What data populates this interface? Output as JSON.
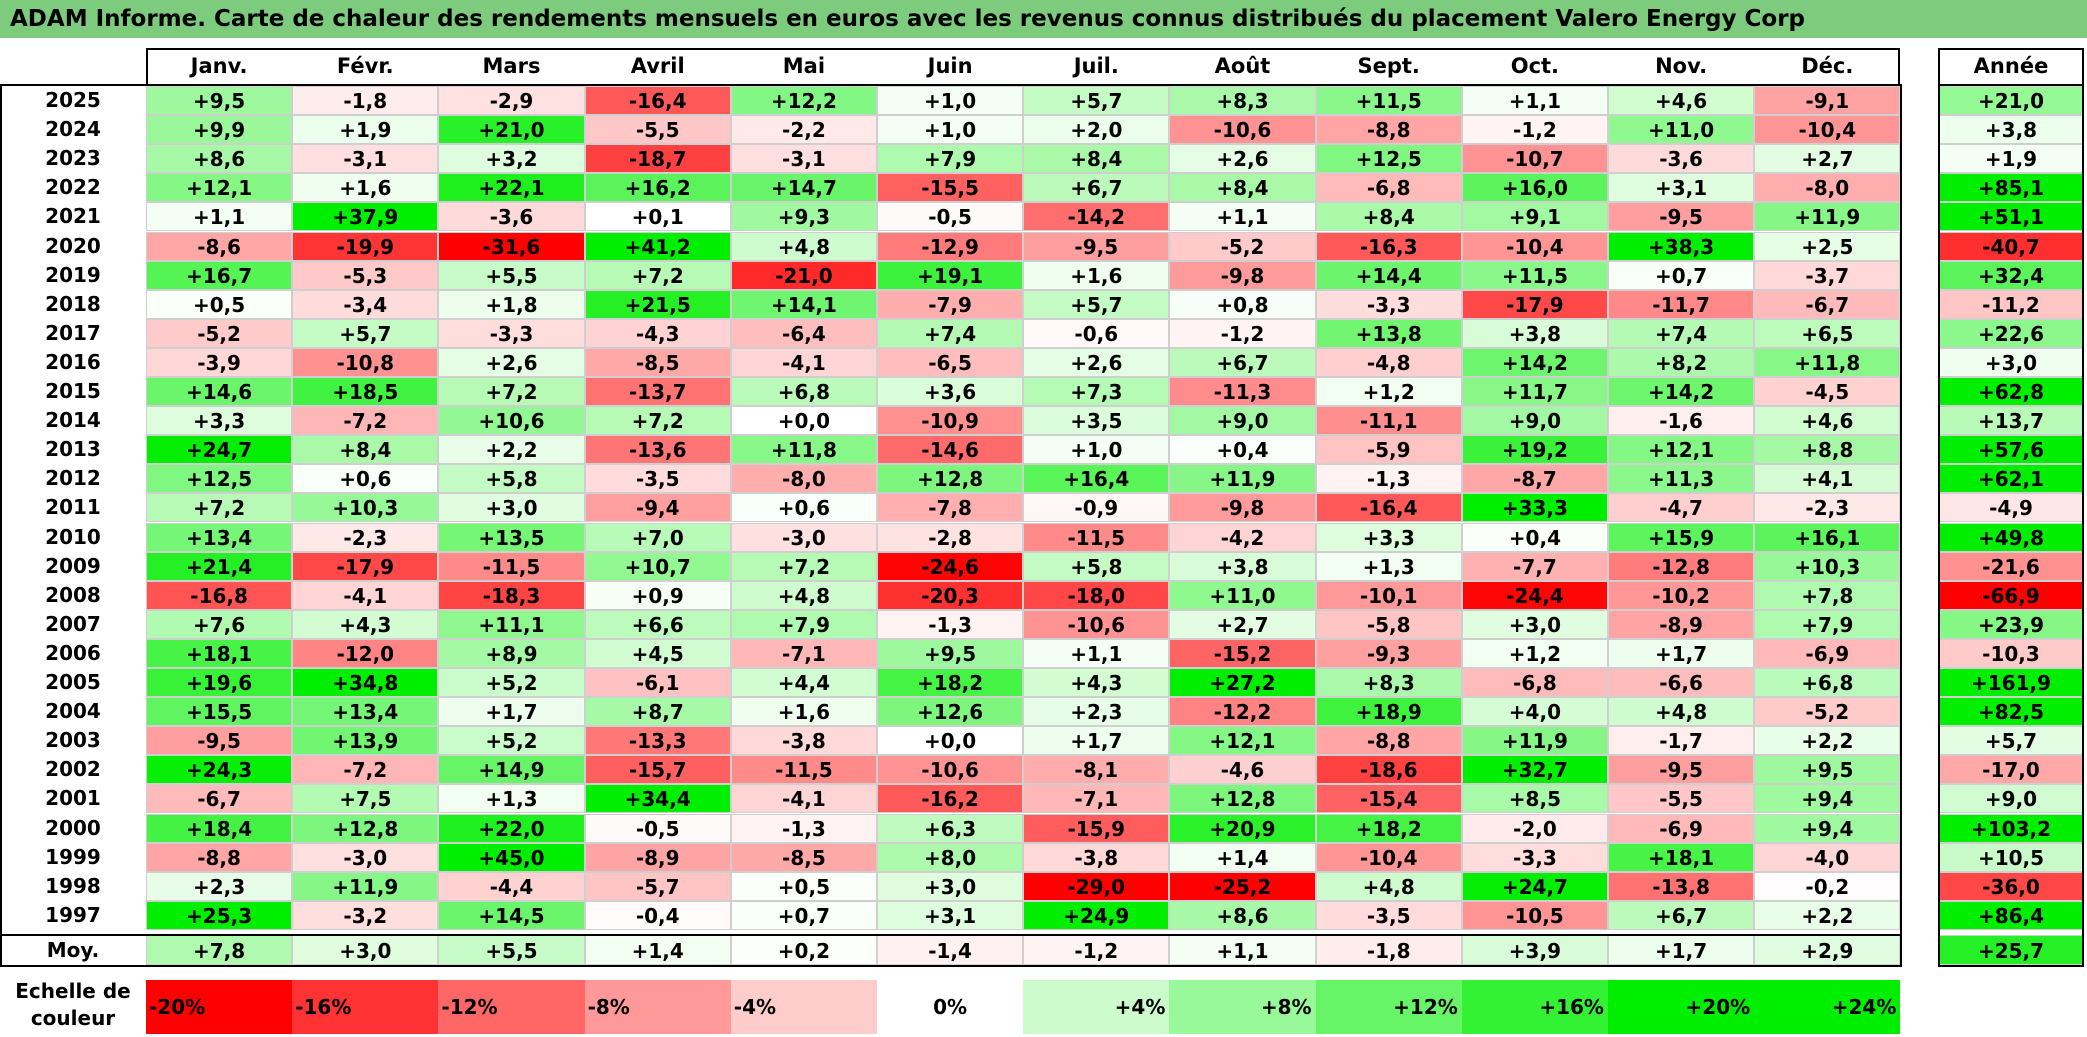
{
  "title": "ADAM Informe. Carte de chaleur des rendements mensuels en euros avec les revenus connus distribués du placement Valero Energy Corp",
  "chart_data": {
    "type": "heatmap",
    "title": "ADAM Informe. Carte de chaleur des rendements mensuels en euros avec les revenus connus distribués du placement Valero Energy Corp",
    "columns": [
      "Janv.",
      "Févr.",
      "Mars",
      "Avril",
      "Mai",
      "Juin",
      "Juil.",
      "Août",
      "Sept.",
      "Oct.",
      "Nov.",
      "Déc."
    ],
    "year_header": "Année",
    "rows": [
      {
        "label": "2025",
        "values": [
          "+9,5",
          "-1,8",
          "-2,9",
          "-16,4",
          "+12,2",
          "+1,0",
          "+5,7",
          "+8,3",
          "+11,5",
          "+1,1",
          "+4,6",
          "-9,1"
        ],
        "year": "+21,0"
      },
      {
        "label": "2024",
        "values": [
          "+9,9",
          "+1,9",
          "+21,0",
          "-5,5",
          "-2,2",
          "+1,0",
          "+2,0",
          "-10,6",
          "-8,8",
          "-1,2",
          "+11,0",
          "-10,4"
        ],
        "year": "+3,8"
      },
      {
        "label": "2023",
        "values": [
          "+8,6",
          "-3,1",
          "+3,2",
          "-18,7",
          "-3,1",
          "+7,9",
          "+8,4",
          "+2,6",
          "+12,5",
          "-10,7",
          "-3,6",
          "+2,7"
        ],
        "year": "+1,9"
      },
      {
        "label": "2022",
        "values": [
          "+12,1",
          "+1,6",
          "+22,1",
          "+16,2",
          "+14,7",
          "-15,5",
          "+6,7",
          "+8,4",
          "-6,8",
          "+16,0",
          "+3,1",
          "-8,0"
        ],
        "year": "+85,1"
      },
      {
        "label": "2021",
        "values": [
          "+1,1",
          "+37,9",
          "-3,6",
          "+0,1",
          "+9,3",
          "-0,5",
          "-14,2",
          "+1,1",
          "+8,4",
          "+9,1",
          "-9,5",
          "+11,9"
        ],
        "year": "+51,1"
      },
      {
        "label": "2020",
        "values": [
          "-8,6",
          "-19,9",
          "-31,6",
          "+41,2",
          "+4,8",
          "-12,9",
          "-9,5",
          "-5,2",
          "-16,3",
          "-10,4",
          "+38,3",
          "+2,5"
        ],
        "year": "-40,7"
      },
      {
        "label": "2019",
        "values": [
          "+16,7",
          "-5,3",
          "+5,5",
          "+7,2",
          "-21,0",
          "+19,1",
          "+1,6",
          "-9,8",
          "+14,4",
          "+11,5",
          "+0,7",
          "-3,7"
        ],
        "year": "+32,4"
      },
      {
        "label": "2018",
        "values": [
          "+0,5",
          "-3,4",
          "+1,8",
          "+21,5",
          "+14,1",
          "-7,9",
          "+5,7",
          "+0,8",
          "-3,3",
          "-17,9",
          "-11,7",
          "-6,7"
        ],
        "year": "-11,2"
      },
      {
        "label": "2017",
        "values": [
          "-5,2",
          "+5,7",
          "-3,3",
          "-4,3",
          "-6,4",
          "+7,4",
          "-0,6",
          "-1,2",
          "+13,8",
          "+3,8",
          "+7,4",
          "+6,5"
        ],
        "year": "+22,6"
      },
      {
        "label": "2016",
        "values": [
          "-3,9",
          "-10,8",
          "+2,6",
          "-8,5",
          "-4,1",
          "-6,5",
          "+2,6",
          "+6,7",
          "-4,8",
          "+14,2",
          "+8,2",
          "+11,8"
        ],
        "year": "+3,0"
      },
      {
        "label": "2015",
        "values": [
          "+14,6",
          "+18,5",
          "+7,2",
          "-13,7",
          "+6,8",
          "+3,6",
          "+7,3",
          "-11,3",
          "+1,2",
          "+11,7",
          "+14,2",
          "-4,5"
        ],
        "year": "+62,8"
      },
      {
        "label": "2014",
        "values": [
          "+3,3",
          "-7,2",
          "+10,6",
          "+7,2",
          "+0,0",
          "-10,9",
          "+3,5",
          "+9,0",
          "-11,1",
          "+9,0",
          "-1,6",
          "+4,6"
        ],
        "year": "+13,7"
      },
      {
        "label": "2013",
        "values": [
          "+24,7",
          "+8,4",
          "+2,2",
          "-13,6",
          "+11,8",
          "-14,6",
          "+1,0",
          "+0,4",
          "-5,9",
          "+19,2",
          "+12,1",
          "+8,8"
        ],
        "year": "+57,6"
      },
      {
        "label": "2012",
        "values": [
          "+12,5",
          "+0,6",
          "+5,8",
          "-3,5",
          "-8,0",
          "+12,8",
          "+16,4",
          "+11,9",
          "-1,3",
          "-8,7",
          "+11,3",
          "+4,1"
        ],
        "year": "+62,1"
      },
      {
        "label": "2011",
        "values": [
          "+7,2",
          "+10,3",
          "+3,0",
          "-9,4",
          "+0,6",
          "-7,8",
          "-0,9",
          "-9,8",
          "-16,4",
          "+33,3",
          "-4,7",
          "-2,3"
        ],
        "year": "-4,9"
      },
      {
        "label": "2010",
        "values": [
          "+13,4",
          "-2,3",
          "+13,5",
          "+7,0",
          "-3,0",
          "-2,8",
          "-11,5",
          "-4,2",
          "+3,3",
          "+0,4",
          "+15,9",
          "+16,1"
        ],
        "year": "+49,8"
      },
      {
        "label": "2009",
        "values": [
          "+21,4",
          "-17,9",
          "-11,5",
          "+10,7",
          "+7,2",
          "-24,6",
          "+5,8",
          "+3,8",
          "+1,3",
          "-7,7",
          "-12,8",
          "+10,3"
        ],
        "year": "-21,6"
      },
      {
        "label": "2008",
        "values": [
          "-16,8",
          "-4,1",
          "-18,3",
          "+0,9",
          "+4,8",
          "-20,3",
          "-18,0",
          "+11,0",
          "-10,1",
          "-24,4",
          "-10,2",
          "+7,8"
        ],
        "year": "-66,9"
      },
      {
        "label": "2007",
        "values": [
          "+7,6",
          "+4,3",
          "+11,1",
          "+6,6",
          "+7,9",
          "-1,3",
          "-10,6",
          "+2,7",
          "-5,8",
          "+3,0",
          "-8,9",
          "+7,9"
        ],
        "year": "+23,9"
      },
      {
        "label": "2006",
        "values": [
          "+18,1",
          "-12,0",
          "+8,9",
          "+4,5",
          "-7,1",
          "+9,5",
          "+1,1",
          "-15,2",
          "-9,3",
          "+1,2",
          "+1,7",
          "-6,9"
        ],
        "year": "-10,3"
      },
      {
        "label": "2005",
        "values": [
          "+19,6",
          "+34,8",
          "+5,2",
          "-6,1",
          "+4,4",
          "+18,2",
          "+4,3",
          "+27,2",
          "+8,3",
          "-6,8",
          "-6,6",
          "+6,8"
        ],
        "year": "+161,9"
      },
      {
        "label": "2004",
        "values": [
          "+15,5",
          "+13,4",
          "+1,7",
          "+8,7",
          "+1,6",
          "+12,6",
          "+2,3",
          "-12,2",
          "+18,9",
          "+4,0",
          "+4,8",
          "-5,2"
        ],
        "year": "+82,5"
      },
      {
        "label": "2003",
        "values": [
          "-9,5",
          "+13,9",
          "+5,2",
          "-13,3",
          "-3,8",
          "+0,0",
          "+1,7",
          "+12,1",
          "-8,8",
          "+11,9",
          "-1,7",
          "+2,2"
        ],
        "year": "+5,7"
      },
      {
        "label": "2002",
        "values": [
          "+24,3",
          "-7,2",
          "+14,9",
          "-15,7",
          "-11,5",
          "-10,6",
          "-8,1",
          "-4,6",
          "-18,6",
          "+32,7",
          "-9,5",
          "+9,5"
        ],
        "year": "-17,0"
      },
      {
        "label": "2001",
        "values": [
          "-6,7",
          "+7,5",
          "+1,3",
          "+34,4",
          "-4,1",
          "-16,2",
          "-7,1",
          "+12,8",
          "-15,4",
          "+8,5",
          "-5,5",
          "+9,4"
        ],
        "year": "+9,0"
      },
      {
        "label": "2000",
        "values": [
          "+18,4",
          "+12,8",
          "+22,0",
          "-0,5",
          "-1,3",
          "+6,3",
          "-15,9",
          "+20,9",
          "+18,2",
          "-2,0",
          "-6,9",
          "+9,4"
        ],
        "year": "+103,2"
      },
      {
        "label": "1999",
        "values": [
          "-8,8",
          "-3,0",
          "+45,0",
          "-8,9",
          "-8,5",
          "+8,0",
          "-3,8",
          "+1,4",
          "-10,4",
          "-3,3",
          "+18,1",
          "-4,0"
        ],
        "year": "+10,5"
      },
      {
        "label": "1998",
        "values": [
          "+2,3",
          "+11,9",
          "-4,4",
          "-5,7",
          "+0,5",
          "+3,0",
          "-29,0",
          "-25,2",
          "+4,8",
          "+24,7",
          "-13,8",
          "-0,2"
        ],
        "year": "-36,0"
      },
      {
        "label": "1997",
        "values": [
          "+25,3",
          "-3,2",
          "+14,5",
          "-0,4",
          "+0,7",
          "+3,1",
          "+24,9",
          "+8,6",
          "-3,5",
          "-10,5",
          "+6,7",
          "+2,2"
        ],
        "year": "+86,4"
      }
    ],
    "average_row": {
      "label": "Moy.",
      "values": [
        "+7,8",
        "+3,0",
        "+5,5",
        "+1,4",
        "+0,2",
        "-1,4",
        "-1,2",
        "+1,1",
        "-1,8",
        "+3,9",
        "+1,7",
        "+2,9"
      ],
      "year": "+25,7"
    },
    "scale": {
      "label": "Echelle de couleur",
      "steps": [
        "-20%",
        "-16%",
        "-12%",
        "-8%",
        "-4%",
        "0%",
        "+4%",
        "+8%",
        "+12%",
        "+16%",
        "+20%",
        "+24%"
      ],
      "values": [
        -20,
        -16,
        -12,
        -8,
        -4,
        0,
        4,
        8,
        12,
        16,
        20,
        24
      ]
    },
    "colors": {
      "title_bar": "#7dcc7d",
      "negative_max": "#ff0000",
      "neutral": "#ffffff",
      "positive_max": "#00ee00"
    }
  }
}
